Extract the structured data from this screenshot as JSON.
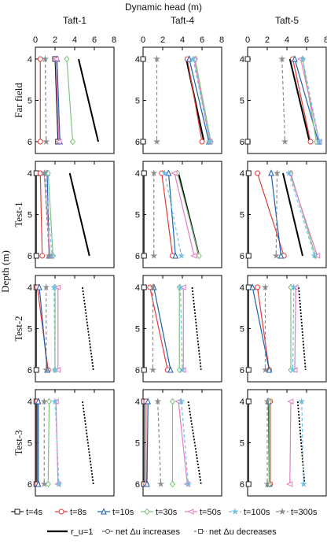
{
  "chart_data": {
    "type": "line",
    "title": "Dynamic head (m)",
    "xlabel": "Dynamic head (m)",
    "ylabel": "Depth (m)",
    "xlim": [
      0,
      8
    ],
    "ylim": [
      4,
      6
    ],
    "x_ticks": [
      "0",
      "2",
      "4",
      "6",
      "8"
    ],
    "y_ticks": [
      "4",
      "5",
      "6"
    ],
    "columns": [
      "Taft-1",
      "Taft-4",
      "Taft-5"
    ],
    "rows": [
      "Far field",
      "Test-1",
      "Test-2",
      "Test-3"
    ],
    "series_styles": [
      {
        "label": "t=4s",
        "color": "#222222",
        "marker": "square",
        "dash": "solid"
      },
      {
        "label": "t=8s",
        "color": "#e23b3b",
        "marker": "circle",
        "dash": "solid"
      },
      {
        "label": "t=10s",
        "color": "#1f5fb0",
        "marker": "triangle",
        "dash": "solid"
      },
      {
        "label": "t=30s",
        "color": "#7cc47c",
        "marker": "diamond",
        "dash": "solid"
      },
      {
        "label": "t=50s",
        "color": "#e87cc0",
        "marker": "triangle-left",
        "dash": "solid"
      },
      {
        "label": "t=100s",
        "color": "#6fbfe3",
        "marker": "star",
        "dash": "dashed"
      },
      {
        "label": "t=300s",
        "color": "#8c8c8c",
        "marker": "star",
        "dash": "dashed"
      }
    ],
    "reference_lines": [
      {
        "label": "r_u=1",
        "style": "solid-black"
      },
      {
        "label": "net Δu increases",
        "style": "solid"
      },
      {
        "label": "net Δu decreases",
        "style": "dashed"
      }
    ],
    "ref_style_by_row": [
      "solid",
      "solid",
      "dotted",
      "dotted"
    ],
    "panels": [
      [
        {
          "ref": [
            4.4,
            6.4
          ],
          "series": [
            [
              2.0,
              2.3
            ],
            [
              0.5,
              0.5
            ],
            [
              2.2,
              2.5
            ],
            [
              3.2,
              3.8
            ],
            [
              2.1,
              2.4
            ],
            [
              1.0,
              1.1
            ],
            [
              1.0,
              1.1
            ]
          ]
        },
        {
          "ref": [
            3.5,
            5.5
          ],
          "series": [
            [
              0.1,
              0.1
            ],
            [
              0.5,
              0.7
            ],
            [
              1.2,
              1.4
            ],
            [
              1.3,
              1.8
            ],
            [
              0.9,
              1.5
            ],
            [
              1.0,
              1.7
            ],
            [
              0.9,
              1.4
            ]
          ]
        },
        {
          "ref": [
            4.8,
            5.9
          ],
          "series": [
            [
              0.1,
              0.1
            ],
            [
              0.2,
              1.3
            ],
            [
              0.4,
              1.2
            ],
            [
              2.0,
              2.0
            ],
            [
              2.3,
              2.3
            ],
            [
              1.9,
              2.0
            ],
            [
              1.1,
              1.1
            ]
          ]
        },
        {
          "ref": [
            4.8,
            5.9
          ],
          "series": [
            [
              0.1,
              0.1
            ],
            [
              0.2,
              0.2
            ],
            [
              0.3,
              0.3
            ],
            [
              1.4,
              1.3
            ],
            [
              2.1,
              2.3
            ],
            [
              2.0,
              2.4
            ],
            [
              0.9,
              0.9
            ]
          ]
        }
      ],
      [
        {
          "ref": [
            4.4,
            6.2
          ],
          "series": [
            [
              0.0,
              0.0
            ],
            [
              4.5,
              6.0
            ],
            [
              4.7,
              6.7
            ],
            [
              5.3,
              6.9
            ],
            [
              5.2,
              6.8
            ],
            [
              5.1,
              6.8
            ],
            [
              1.4,
              1.4
            ]
          ]
        },
        {
          "ref": [
            3.6,
            5.7
          ],
          "series": [
            [
              0.1,
              0.1
            ],
            [
              1.9,
              3.0
            ],
            [
              2.6,
              3.3
            ],
            [
              3.5,
              5.7
            ],
            [
              3.2,
              5.2
            ],
            [
              2.2,
              3.9
            ],
            [
              1.1,
              1.1
            ]
          ]
        },
        {
          "ref": [
            5.0,
            5.9
          ],
          "series": [
            [
              0.1,
              0.1
            ],
            [
              0.7,
              2.5
            ],
            [
              1.1,
              2.8
            ],
            [
              3.7,
              3.7
            ],
            [
              4.1,
              4.1
            ],
            [
              3.8,
              4.0
            ],
            [
              1.0,
              1.0
            ]
          ]
        },
        {
          "ref": [
            4.6,
            5.9
          ],
          "series": [
            [
              0.1,
              0.1
            ],
            [
              0.3,
              0.3
            ],
            [
              0.5,
              0.4
            ],
            [
              3.0,
              3.0
            ],
            [
              3.6,
              4.5
            ],
            [
              3.9,
              4.6
            ],
            [
              1.5,
              1.8
            ]
          ]
        }
      ],
      [
        {
          "ref": [
            4.3,
            6.3
          ],
          "series": [
            [
              0.0,
              0.0
            ],
            [
              4.6,
              6.4
            ],
            [
              4.8,
              7.2
            ],
            [
              5.6,
              7.0
            ],
            [
              5.4,
              7.3
            ],
            [
              5.6,
              7.3
            ],
            [
              3.5,
              3.8
            ]
          ]
        },
        {
          "ref": [
            3.6,
            5.6
          ],
          "series": [
            [
              0.1,
              0.1
            ],
            [
              1.0,
              3.7
            ],
            [
              2.4,
              3.4
            ],
            [
              4.4,
              6.9
            ],
            [
              4.3,
              7.1
            ],
            [
              4.2,
              6.8
            ],
            [
              3.0,
              2.9
            ]
          ]
        },
        {
          "ref": [
            5.2,
            5.9
          ],
          "series": [
            [
              0.1,
              0.1
            ],
            [
              1.0,
              2.2
            ],
            [
              0.5,
              2.2
            ],
            [
              4.4,
              4.4
            ],
            [
              4.9,
              4.8
            ],
            [
              4.7,
              4.6
            ],
            [
              1.8,
              1.8
            ]
          ]
        },
        {
          "ref": [
            5.1,
            5.8
          ],
          "series": [
            [
              0.1,
              0.1
            ],
            [
              2.3,
              2.3
            ],
            [
              2.1,
              2.2
            ],
            [
              2.2,
              2.2
            ],
            [
              4.4,
              4.3
            ],
            [
              5.5,
              5.7
            ],
            [
              2.0,
              2.0
            ]
          ]
        }
      ]
    ],
    "legend": {
      "row1": [
        "t=4s",
        "t=8s",
        "t=10s",
        "t=30s",
        "t=50s",
        "t=100s",
        "t=300s"
      ],
      "row2": [
        "r_u=1",
        "net Δu increases",
        "net Δu decreases"
      ]
    },
    "grid": false,
    "legend_placement": "bottom"
  }
}
